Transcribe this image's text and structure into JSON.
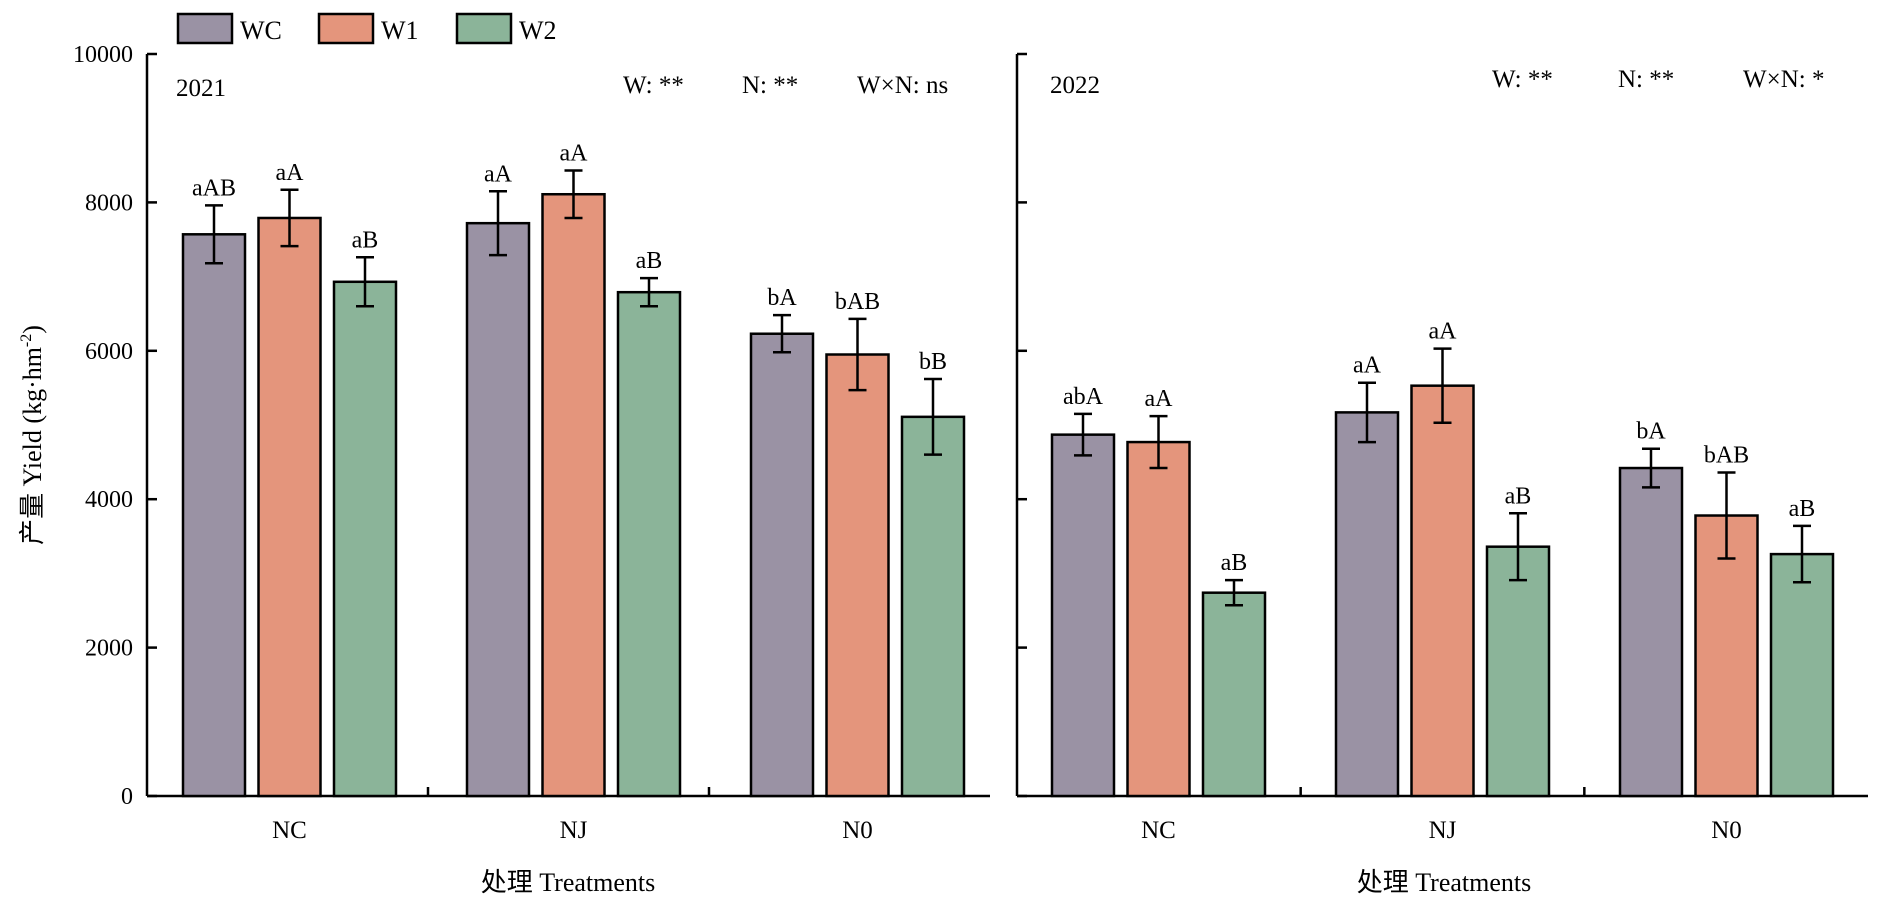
{
  "colors": {
    "WC": "#9a92a4",
    "W1": "#e4957c",
    "W2": "#8bb499",
    "axis": "#000000"
  },
  "legend": [
    {
      "name": "WC",
      "color": "#9a92a4"
    },
    {
      "name": "W1",
      "color": "#e4957c"
    },
    {
      "name": "W2",
      "color": "#8bb499"
    }
  ],
  "ylabel_cn": "产量",
  "ylabel_en": "Yield (kg·hm",
  "ylabel_sup": "-2",
  "ylabel_close": ")",
  "chart_data": [
    {
      "type": "bar",
      "title": "2021",
      "stats": [
        "W: **",
        "N: **",
        "W×N: ns"
      ],
      "categories": [
        "NC",
        "NJ",
        "N0"
      ],
      "xlabel": "处理 Treatments",
      "ylabel": "产量 Yield (kg·hm-2)",
      "ylim": [
        0,
        10000
      ],
      "yticks": [
        0,
        2000,
        4000,
        6000,
        8000,
        10000
      ],
      "series": [
        {
          "name": "WC",
          "values": [
            7570,
            7720,
            6230
          ],
          "errors": [
            390,
            430,
            250
          ],
          "labels": [
            "aAB",
            "aA",
            "bA"
          ]
        },
        {
          "name": "W1",
          "values": [
            7790,
            8110,
            5950
          ],
          "errors": [
            380,
            320,
            480
          ],
          "labels": [
            "aA",
            "aA",
            "bAB"
          ]
        },
        {
          "name": "W2",
          "values": [
            6930,
            6790,
            5110
          ],
          "errors": [
            330,
            190,
            510
          ],
          "labels": [
            "aB",
            "aB",
            "bB"
          ]
        }
      ]
    },
    {
      "type": "bar",
      "title": "2022",
      "stats": [
        "W: **",
        "N: **",
        "W×N: *"
      ],
      "categories": [
        "NC",
        "NJ",
        "N0"
      ],
      "xlabel": "处理 Treatments",
      "ylim": [
        0,
        10000
      ],
      "series": [
        {
          "name": "WC",
          "values": [
            4870,
            5170,
            4420
          ],
          "errors": [
            280,
            400,
            260
          ],
          "labels": [
            "abA",
            "aA",
            "bA"
          ]
        },
        {
          "name": "W1",
          "values": [
            4770,
            5530,
            3780
          ],
          "errors": [
            350,
            500,
            580
          ],
          "labels": [
            "aA",
            "aA",
            "bAB"
          ]
        },
        {
          "name": "W2",
          "values": [
            2740,
            3360,
            3260
          ],
          "errors": [
            170,
            450,
            380
          ],
          "labels": [
            "aB",
            "aB",
            "aB"
          ]
        }
      ]
    }
  ]
}
